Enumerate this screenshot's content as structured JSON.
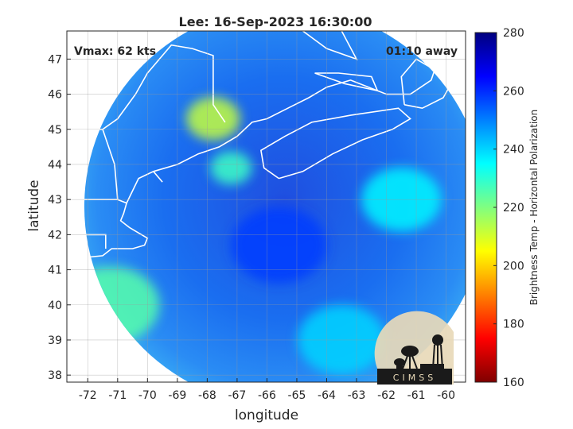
{
  "chart_data": {
    "type": "heatmap",
    "title": "Lee: 16-Sep-2023 16:30:00",
    "xlabel": "longitude",
    "ylabel": "latitude",
    "xlim": [
      -72.7,
      -59.35
    ],
    "ylim": [
      37.8,
      47.8
    ],
    "x_ticks": [
      -72,
      -71,
      -70,
      -69,
      -68,
      -67,
      -66,
      -65,
      -64,
      -63,
      -62,
      -61,
      -60
    ],
    "y_ticks": [
      38,
      39,
      40,
      41,
      42,
      43,
      44,
      45,
      46,
      47
    ],
    "grid": true,
    "annotations": {
      "vmax": "Vmax: 62 kts",
      "away": "01:10 away"
    },
    "colorbar": {
      "label": "Brightness Temp - Horizontal Polarization",
      "range": [
        160,
        280
      ],
      "ticks": [
        160,
        180,
        200,
        220,
        240,
        260,
        280
      ],
      "colors": [
        "#7f0000",
        "#ff0000",
        "#ff8000",
        "#ffff00",
        "#80ff80",
        "#00ffff",
        "#0080ff",
        "#0000ff",
        "#00007f"
      ]
    },
    "swath": {
      "center_lon": -65.4,
      "center_lat": 42.8,
      "background_value": 252,
      "features": [
        {
          "name": "dense convection",
          "lon": -67.8,
          "lat": 45.3,
          "value": 212
        },
        {
          "name": "convection south of Maine",
          "lon": -67.2,
          "lat": 43.9,
          "value": 228
        },
        {
          "name": "storm center",
          "lon": -65.6,
          "lat": 41.7,
          "value": 258
        },
        {
          "name": "southwest edge",
          "lon": -71.2,
          "lat": 40.0,
          "value": 225
        },
        {
          "name": "eastern band",
          "lon": -61.5,
          "lat": 43.0,
          "value": 236
        },
        {
          "name": "southern band",
          "lon": -63.5,
          "lat": 39.0,
          "value": 240
        }
      ]
    }
  },
  "logo": {
    "text": "CIMSS",
    "icon": "cimss-logo-icon"
  }
}
